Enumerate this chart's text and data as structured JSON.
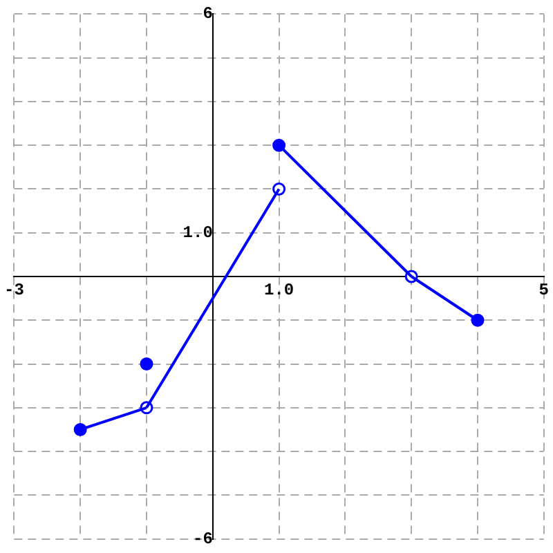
{
  "chart_data": {
    "type": "line",
    "xlim": [
      -3,
      5
    ],
    "ylim": [
      -6,
      6
    ],
    "xticks": [
      {
        "value": -3,
        "label": "-3"
      },
      {
        "value": -2,
        "label": null
      },
      {
        "value": -1,
        "label": null
      },
      {
        "value": 0,
        "label": null
      },
      {
        "value": 1,
        "label": "1.0"
      },
      {
        "value": 2,
        "label": null
      },
      {
        "value": 3,
        "label": null
      },
      {
        "value": 4,
        "label": null
      },
      {
        "value": 5,
        "label": "5"
      }
    ],
    "yticks": [
      {
        "value": -6,
        "label": "-6"
      },
      {
        "value": -5,
        "label": null
      },
      {
        "value": -4,
        "label": null
      },
      {
        "value": -3,
        "label": null
      },
      {
        "value": -2,
        "label": null
      },
      {
        "value": -1,
        "label": null
      },
      {
        "value": 0,
        "label": null
      },
      {
        "value": 1,
        "label": "1.0"
      },
      {
        "value": 2,
        "label": null
      },
      {
        "value": 3,
        "label": null
      },
      {
        "value": 4,
        "label": null
      },
      {
        "value": 5,
        "label": null
      },
      {
        "value": 6,
        "label": "6"
      }
    ],
    "grid": true,
    "legend": false,
    "line_style": "solid",
    "series": [
      {
        "marker": "none",
        "color": "#0000ff",
        "x": [
          -2,
          -1
        ],
        "values": [
          -3.5,
          -3
        ]
      },
      {
        "marker": "none",
        "color": "#0000ff",
        "x": [
          -1,
          1
        ],
        "values": [
          -3,
          2
        ]
      },
      {
        "marker": "none",
        "color": "#0000ff",
        "x": [
          1,
          3
        ],
        "values": [
          3,
          0
        ]
      },
      {
        "marker": "none",
        "color": "#0000ff",
        "x": [
          3,
          4
        ],
        "values": [
          0,
          -1
        ]
      },
      {
        "type": "scatter",
        "marker": "circle",
        "color": "#0000ff",
        "x": [
          -2,
          -1,
          1,
          4
        ],
        "values": [
          -3.5,
          -2,
          3,
          -1
        ]
      },
      {
        "type": "scatter",
        "marker": "circle",
        "color": "#0000ff",
        "colors": [
          "#ffffff",
          "#ffffff",
          "#ffffff"
        ],
        "x": [
          -1,
          1,
          3
        ],
        "values": [
          -3,
          2,
          0
        ]
      }
    ]
  }
}
